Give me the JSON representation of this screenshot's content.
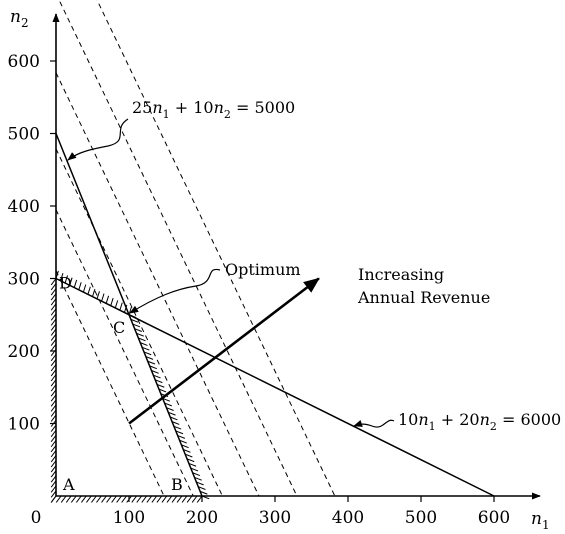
{
  "chart_data": {
    "type": "line",
    "title": "",
    "x_axis": {
      "label_var": "n",
      "label_sub": "1",
      "range": [
        0,
        650
      ],
      "ticks": [
        0,
        100,
        200,
        300,
        400,
        500,
        600
      ],
      "tick_labels": [
        "0",
        "100",
        "200",
        "300",
        "400",
        "500",
        "600"
      ]
    },
    "y_axis": {
      "label_var": "n",
      "label_sub": "2",
      "range": [
        0,
        650
      ],
      "ticks": [
        100,
        200,
        300,
        400,
        500,
        600
      ],
      "tick_labels": [
        "100",
        "200",
        "300",
        "400",
        "500",
        "600"
      ]
    },
    "constraints": [
      {
        "name": "25n1 + 10n2 = 5000",
        "label": {
          "c1": "25",
          "c2": " + 10",
          "rhs": " = 5000"
        },
        "points": [
          [
            0,
            500
          ],
          [
            200,
            0
          ]
        ]
      },
      {
        "name": "10n1 + 20n2 = 6000",
        "label": {
          "c1": "10",
          "c2": " + 20",
          "rhs": " = 6000"
        },
        "points": [
          [
            0,
            300
          ],
          [
            600,
            0
          ]
        ]
      }
    ],
    "isorevenue_lines": {
      "slope": -2.1,
      "intercepts_n1": [
        148,
        188,
        228,
        278,
        330,
        382
      ]
    },
    "revenue_arrow": {
      "from": [
        100,
        100
      ],
      "to": [
        360,
        300
      ],
      "label_lines": [
        "Increasing",
        "Annual Revenue"
      ]
    },
    "points": [
      {
        "label": "A",
        "x": 0,
        "y": 0
      },
      {
        "label": "B",
        "x": 200,
        "y": 0
      },
      {
        "label": "C",
        "x": 100,
        "y": 250
      },
      {
        "label": "D",
        "x": 0,
        "y": 300
      }
    ],
    "optimum": {
      "label": "Optimum",
      "x": 100,
      "y": 250
    }
  }
}
